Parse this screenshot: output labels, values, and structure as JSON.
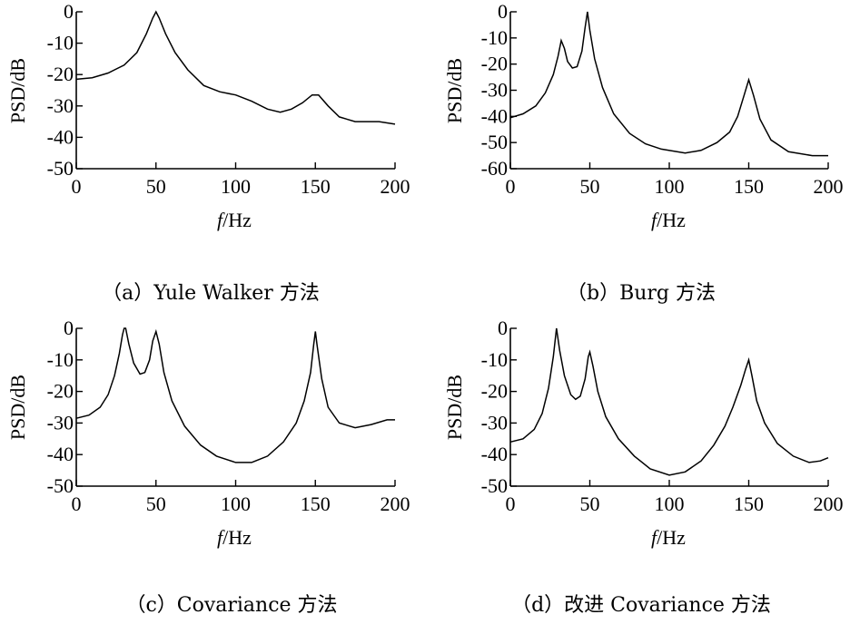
{
  "chart_data": [
    {
      "type": "line",
      "caption": "（a）Yule Walker 方法",
      "xlabel_italic": "f",
      "xlabel_unit": "/Hz",
      "ylabel": "PSD/dB",
      "xlim": [
        0,
        200
      ],
      "ylim": [
        -50,
        0
      ],
      "xticks": [
        0,
        50,
        100,
        150,
        200
      ],
      "yticks": [
        0,
        -10,
        -20,
        -30,
        -40,
        -50
      ],
      "series": [
        {
          "name": "Yule Walker",
          "points": [
            [
              0,
              -21.5
            ],
            [
              10,
              -21
            ],
            [
              20,
              -19.5
            ],
            [
              30,
              -17
            ],
            [
              38,
              -13
            ],
            [
              44,
              -7
            ],
            [
              48,
              -2
            ],
            [
              50,
              0
            ],
            [
              52,
              -2
            ],
            [
              56,
              -7
            ],
            [
              62,
              -13
            ],
            [
              70,
              -18.5
            ],
            [
              80,
              -23.5
            ],
            [
              90,
              -25.5
            ],
            [
              100,
              -26.5
            ],
            [
              110,
              -28.5
            ],
            [
              120,
              -31
            ],
            [
              128,
              -32
            ],
            [
              135,
              -31
            ],
            [
              142,
              -29
            ],
            [
              148,
              -26.5
            ],
            [
              152,
              -26.5
            ],
            [
              158,
              -30
            ],
            [
              165,
              -33.5
            ],
            [
              175,
              -35
            ],
            [
              190,
              -35
            ],
            [
              200,
              -35.8
            ]
          ]
        }
      ]
    },
    {
      "type": "line",
      "caption": "（b）Burg 方法",
      "xlabel_italic": "f",
      "xlabel_unit": "/Hz",
      "ylabel": "PSD/dB",
      "xlim": [
        0,
        200
      ],
      "ylim": [
        -60,
        0
      ],
      "xticks": [
        0,
        50,
        100,
        150,
        200
      ],
      "yticks": [
        0,
        -10,
        -20,
        -30,
        -40,
        -50,
        -60
      ],
      "series": [
        {
          "name": "Burg",
          "points": [
            [
              0,
              -40.5
            ],
            [
              8,
              -39
            ],
            [
              16,
              -36
            ],
            [
              22,
              -31
            ],
            [
              27,
              -24
            ],
            [
              30,
              -17
            ],
            [
              32,
              -11
            ],
            [
              34,
              -14
            ],
            [
              36,
              -19
            ],
            [
              39,
              -21.5
            ],
            [
              42,
              -21
            ],
            [
              45,
              -15
            ],
            [
              47,
              -6
            ],
            [
              48.5,
              0
            ],
            [
              50,
              -7
            ],
            [
              53,
              -18
            ],
            [
              58,
              -29
            ],
            [
              65,
              -39
            ],
            [
              75,
              -46.5
            ],
            [
              85,
              -50.5
            ],
            [
              95,
              -52.5
            ],
            [
              110,
              -54
            ],
            [
              120,
              -53
            ],
            [
              130,
              -50
            ],
            [
              138,
              -46
            ],
            [
              143,
              -40
            ],
            [
              147,
              -32
            ],
            [
              150,
              -26
            ],
            [
              153,
              -32
            ],
            [
              157,
              -41
            ],
            [
              164,
              -49
            ],
            [
              175,
              -53.5
            ],
            [
              190,
              -55
            ],
            [
              200,
              -55
            ]
          ]
        }
      ]
    },
    {
      "type": "line",
      "caption": "（c）Covariance 方法",
      "xlabel_italic": "f",
      "xlabel_unit": "/Hz",
      "ylabel": "PSD/dB",
      "xlim": [
        0,
        200
      ],
      "ylim": [
        -50,
        0
      ],
      "xticks": [
        0,
        50,
        100,
        150,
        200
      ],
      "yticks": [
        0,
        -10,
        -20,
        -30,
        -40,
        -50
      ],
      "series": [
        {
          "name": "Covariance",
          "points": [
            [
              0,
              -28.5
            ],
            [
              8,
              -27.5
            ],
            [
              15,
              -25
            ],
            [
              20,
              -21
            ],
            [
              24,
              -15
            ],
            [
              27,
              -8
            ],
            [
              29,
              -2
            ],
            [
              30,
              0
            ],
            [
              31,
              0
            ],
            [
              33,
              -5
            ],
            [
              36,
              -11
            ],
            [
              40,
              -14.5
            ],
            [
              43,
              -14
            ],
            [
              46,
              -10
            ],
            [
              48,
              -4
            ],
            [
              50,
              -1
            ],
            [
              52,
              -5
            ],
            [
              55,
              -14
            ],
            [
              60,
              -23
            ],
            [
              68,
              -31
            ],
            [
              78,
              -37
            ],
            [
              88,
              -40.5
            ],
            [
              100,
              -42.5
            ],
            [
              110,
              -42.5
            ],
            [
              120,
              -40.5
            ],
            [
              130,
              -36
            ],
            [
              138,
              -30
            ],
            [
              143,
              -23
            ],
            [
              147,
              -14
            ],
            [
              149,
              -5
            ],
            [
              150,
              -1
            ],
            [
              151,
              -5
            ],
            [
              154,
              -16
            ],
            [
              158,
              -25
            ],
            [
              165,
              -30
            ],
            [
              175,
              -31.5
            ],
            [
              185,
              -30.5
            ],
            [
              195,
              -29
            ],
            [
              200,
              -29
            ]
          ]
        }
      ]
    },
    {
      "type": "line",
      "caption": "（d）改进 Covariance 方法",
      "xlabel_italic": "f",
      "xlabel_unit": "/Hz",
      "ylabel": "PSD/dB",
      "xlim": [
        0,
        200
      ],
      "ylim": [
        -50,
        0
      ],
      "xticks": [
        0,
        50,
        100,
        150,
        200
      ],
      "yticks": [
        0,
        -10,
        -20,
        -30,
        -40,
        -50
      ],
      "series": [
        {
          "name": "Improved Covariance",
          "points": [
            [
              0,
              -36
            ],
            [
              8,
              -35
            ],
            [
              15,
              -32
            ],
            [
              20,
              -27
            ],
            [
              24,
              -19
            ],
            [
              27,
              -9
            ],
            [
              29,
              0
            ],
            [
              31,
              -7
            ],
            [
              34,
              -15
            ],
            [
              38,
              -21
            ],
            [
              41,
              -22.5
            ],
            [
              44,
              -21.5
            ],
            [
              47,
              -16
            ],
            [
              49,
              -9
            ],
            [
              50,
              -7.5
            ],
            [
              52,
              -12
            ],
            [
              55,
              -20
            ],
            [
              60,
              -28
            ],
            [
              68,
              -35
            ],
            [
              78,
              -40.5
            ],
            [
              88,
              -44.5
            ],
            [
              100,
              -46.5
            ],
            [
              110,
              -45.5
            ],
            [
              120,
              -42
            ],
            [
              128,
              -37
            ],
            [
              135,
              -31
            ],
            [
              140,
              -25
            ],
            [
              145,
              -18
            ],
            [
              148,
              -13
            ],
            [
              150,
              -10
            ],
            [
              152,
              -15
            ],
            [
              155,
              -23
            ],
            [
              160,
              -30
            ],
            [
              168,
              -36.5
            ],
            [
              178,
              -40.5
            ],
            [
              188,
              -42.5
            ],
            [
              195,
              -42
            ],
            [
              200,
              -41
            ]
          ]
        }
      ]
    }
  ]
}
